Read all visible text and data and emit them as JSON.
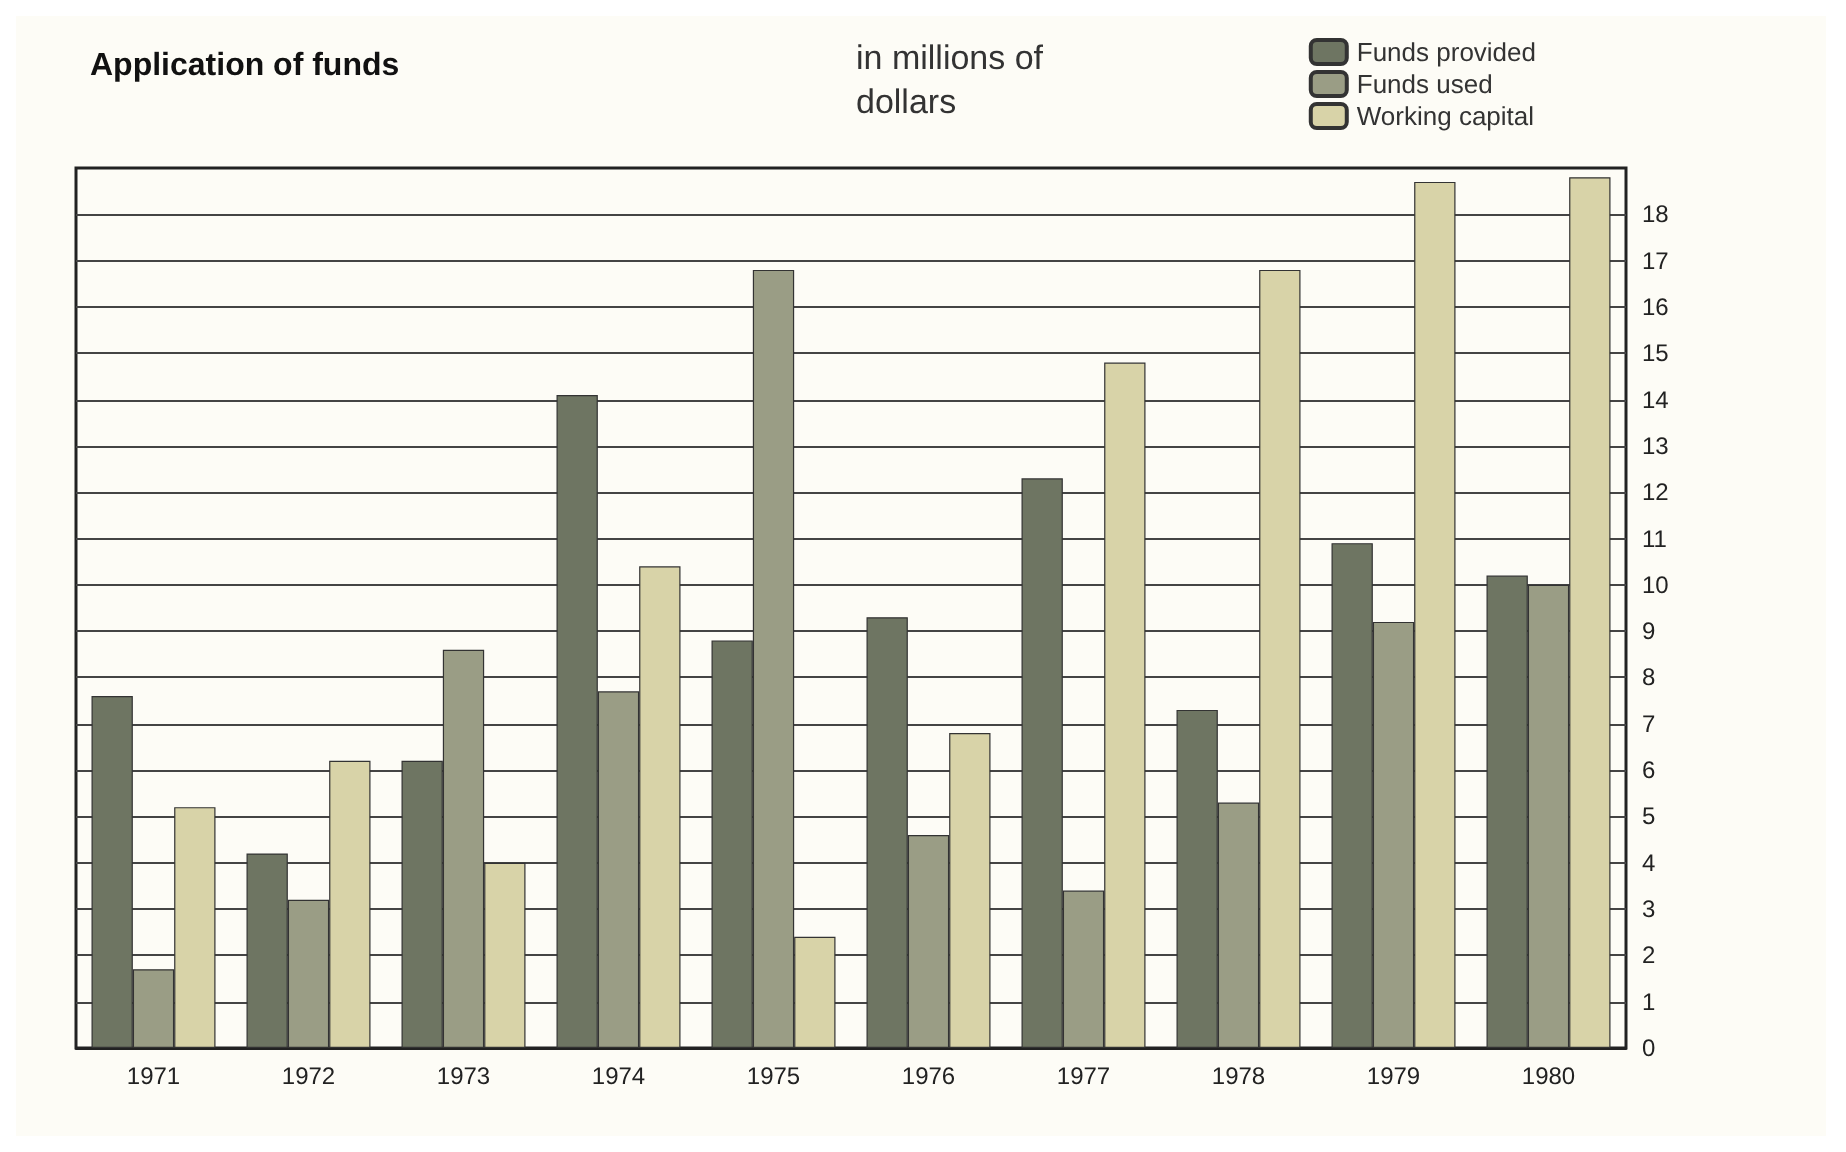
{
  "chart_data": {
    "type": "bar",
    "title": "Application of funds",
    "subtitle": "in millions of dollars",
    "categories": [
      "1971",
      "1972",
      "1973",
      "1974",
      "1975",
      "1976",
      "1977",
      "1978",
      "1979",
      "1980"
    ],
    "series": [
      {
        "name": "Funds provided",
        "color": "#6e7562",
        "values": [
          7.6,
          4.2,
          6.2,
          14.1,
          8.8,
          9.3,
          12.3,
          7.3,
          10.9,
          10.2
        ]
      },
      {
        "name": "Funds used",
        "color": "#9a9d85",
        "values": [
          1.7,
          3.2,
          8.6,
          7.7,
          16.8,
          4.6,
          3.4,
          5.3,
          9.2,
          10.0
        ]
      },
      {
        "name": "Working capital",
        "color": "#d8d3a8",
        "values": [
          5.2,
          6.2,
          4.0,
          10.4,
          2.4,
          6.8,
          14.8,
          16.8,
          18.7,
          18.8
        ]
      }
    ],
    "ylim": [
      0,
      19
    ],
    "yticks": [
      0,
      1,
      2,
      3,
      4,
      5,
      6,
      7,
      8,
      9,
      10,
      11,
      12,
      13,
      14,
      15,
      16,
      17,
      18
    ],
    "grid": "y",
    "legend": "top right"
  }
}
